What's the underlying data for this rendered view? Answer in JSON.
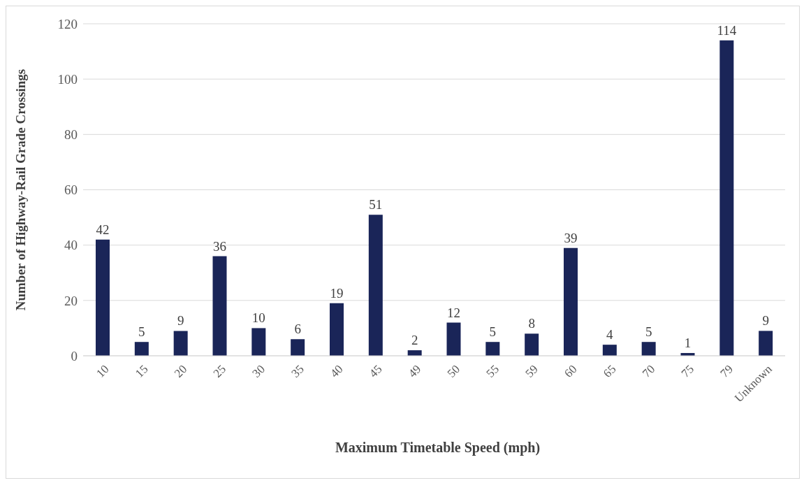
{
  "chart_data": {
    "type": "bar",
    "xlabel": "Maximum Timetable Speed (mph)",
    "ylabel": "Number of Highway-Rail Grade Crossings",
    "categories": [
      "10",
      "15",
      "20",
      "25",
      "30",
      "35",
      "40",
      "45",
      "49",
      "50",
      "55",
      "59",
      "60",
      "65",
      "70",
      "75",
      "79",
      "Unknown"
    ],
    "values": [
      42,
      5,
      9,
      36,
      10,
      6,
      19,
      51,
      2,
      12,
      5,
      8,
      39,
      4,
      5,
      1,
      114,
      9
    ],
    "color": "#1a2558",
    "ylim": [
      0,
      120
    ],
    "yticks": [
      0,
      20,
      40,
      60,
      80,
      100,
      120
    ],
    "grid": "y",
    "data_labels": true
  }
}
